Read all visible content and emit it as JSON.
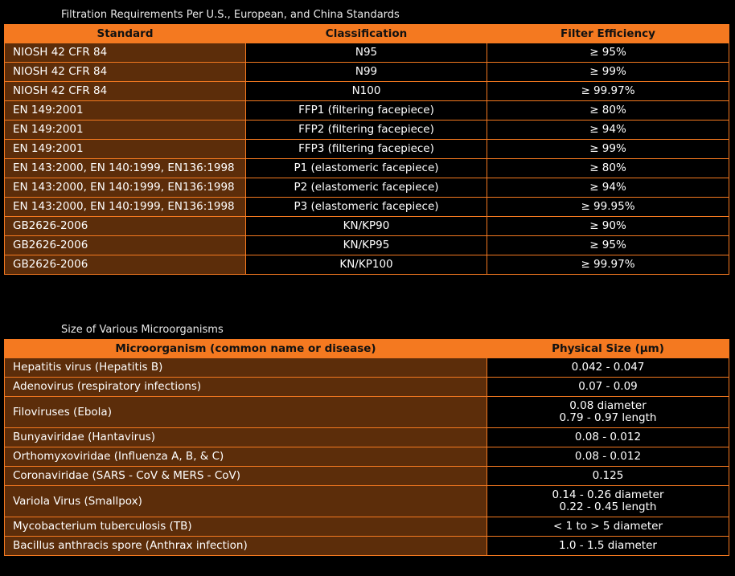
{
  "table1": {
    "title": "Filtration Requirements Per U.S., European, and China Standards",
    "columns": [
      "Standard",
      "Classification",
      "Filter Efficiency"
    ],
    "rows": [
      [
        "NIOSH 42 CFR 84",
        "N95",
        "≥ 95%"
      ],
      [
        "NIOSH 42 CFR 84",
        "N99",
        "≥ 99%"
      ],
      [
        "NIOSH 42 CFR 84",
        "N100",
        "≥ 99.97%"
      ],
      [
        "EN 149:2001",
        "FFP1 (filtering facepiece)",
        "≥ 80%"
      ],
      [
        "EN 149:2001",
        "FFP2 (filtering facepiece)",
        "≥ 94%"
      ],
      [
        "EN 149:2001",
        "FFP3 (filtering facepiece)",
        "≥ 99%"
      ],
      [
        "EN 143:2000, EN 140:1999, EN136:1998",
        "P1 (elastomeric facepiece)",
        "≥ 80%"
      ],
      [
        "EN 143:2000, EN 140:1999, EN136:1998",
        "P2 (elastomeric facepiece)",
        "≥ 94%"
      ],
      [
        "EN 143:2000, EN 140:1999, EN136:1998",
        "P3 (elastomeric facepiece)",
        "≥ 99.95%"
      ],
      [
        "GB2626-2006",
        "KN/KP90",
        "≥ 90%"
      ],
      [
        "GB2626-2006",
        "KN/KP95",
        "≥ 95%"
      ],
      [
        "GB2626-2006",
        "KN/KP100",
        "≥ 99.97%"
      ]
    ]
  },
  "table2": {
    "title": "Size of Various Microorganisms",
    "columns": [
      "Microorganism (common name or disease)",
      "Physical Size (µm)"
    ],
    "rows": [
      [
        "Hepatitis virus (Hepatitis B)",
        "0.042 - 0.047"
      ],
      [
        "Adenovirus (respiratory infections)",
        "0.07 - 0.09"
      ],
      [
        "Filoviruses (Ebola)",
        [
          "0.08 diameter",
          "0.79 - 0.97 length"
        ]
      ],
      [
        "Bunyaviridae (Hantavirus)",
        "0.08 - 0.012"
      ],
      [
        "Orthomyxoviridae (Influenza A, B, & C)",
        "0.08 - 0.012"
      ],
      [
        "Coronaviridae (SARS - CoV & MERS - CoV)",
        "0.125"
      ],
      [
        "Variola Virus (Smallpox)",
        [
          "0.14 - 0.26 diameter",
          "0.22 - 0.45 length"
        ]
      ],
      [
        "Mycobacterium tuberculosis (TB)",
        "< 1 to > 5 diameter"
      ],
      [
        "Bacillus anthracis spore (Anthrax infection)",
        "1.0 - 1.5 diameter"
      ]
    ]
  }
}
